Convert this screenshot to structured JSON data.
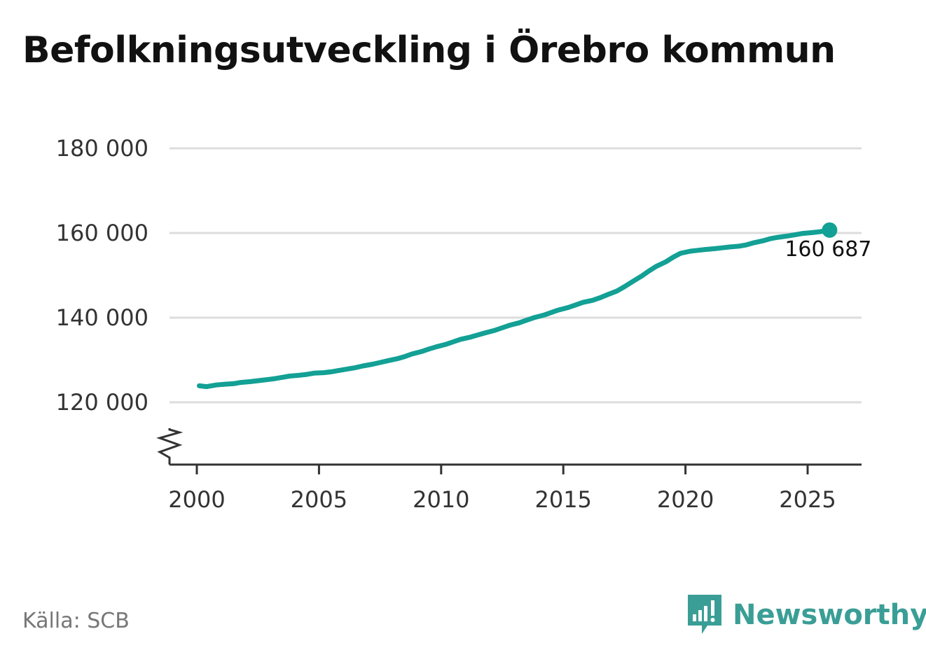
{
  "title": "Befolkningsutveckling i Örebro kommun",
  "source": "Källa: SCB",
  "logo": {
    "text": "Newsworthy",
    "icon": "bar-chart-logo-icon",
    "color": "#3a9e96"
  },
  "colors": {
    "line": "#13a095",
    "grid": "#dddddd",
    "axis": "#333333"
  },
  "chart_data": {
    "type": "line",
    "title": "Befolkningsutveckling i Örebro kommun",
    "xlabel": "",
    "ylabel": "",
    "xlim": [
      1999,
      2027
    ],
    "ylim": [
      105000,
      180000
    ],
    "axis_break": true,
    "grid": true,
    "xticks": [
      2000,
      2005,
      2010,
      2015,
      2020,
      2025
    ],
    "xtick_labels": [
      "2000",
      "2005",
      "2010",
      "2015",
      "2020",
      "2025"
    ],
    "yticks": [
      120000,
      140000,
      160000,
      180000
    ],
    "ytick_labels": [
      "120 000",
      "140 000",
      "160 000",
      "180 000"
    ],
    "series": [
      {
        "x": [
          2000.1,
          2000.4,
          2000.8,
          2001.2,
          2001.5,
          2001.8,
          2002.2,
          2002.5,
          2002.8,
          2003.2,
          2003.5,
          2003.8,
          2004.2,
          2004.5,
          2004.8,
          2005.2,
          2005.5,
          2005.8,
          2006.2,
          2006.5,
          2006.8,
          2007.2,
          2007.5,
          2007.8,
          2008.2,
          2008.5,
          2008.8,
          2009.2,
          2009.5,
          2009.8,
          2010.2,
          2010.5,
          2010.8,
          2011.2,
          2011.5,
          2011.8,
          2012.2,
          2012.5,
          2012.8,
          2013.2,
          2013.5,
          2013.8,
          2014.2,
          2014.5,
          2014.8,
          2015.2,
          2015.5,
          2015.8,
          2016.2,
          2016.5,
          2016.8,
          2017.2,
          2017.5,
          2017.8,
          2018.2,
          2018.5,
          2018.8,
          2019.2,
          2019.5,
          2019.8,
          2020.2,
          2020.5,
          2020.8,
          2021.2,
          2021.5,
          2021.8,
          2022.2,
          2022.5,
          2022.8,
          2023.2,
          2023.5,
          2023.8,
          2024.2,
          2024.5,
          2024.8,
          2025.2,
          2025.5,
          2025.9
        ],
        "y": [
          123900,
          123700,
          124100,
          124300,
          124400,
          124700,
          124900,
          125100,
          125300,
          125600,
          125900,
          126200,
          126400,
          126600,
          126900,
          127000,
          127200,
          127500,
          127900,
          128200,
          128600,
          129000,
          129400,
          129800,
          130300,
          130800,
          131400,
          132000,
          132600,
          133100,
          133700,
          134300,
          134900,
          135400,
          135900,
          136400,
          137000,
          137600,
          138200,
          138800,
          139400,
          140000,
          140600,
          141200,
          141800,
          142400,
          143000,
          143600,
          144100,
          144700,
          145400,
          146300,
          147300,
          148400,
          149800,
          151000,
          152100,
          153200,
          154300,
          155200,
          155700,
          155900,
          156100,
          156300,
          156500,
          156700,
          156900,
          157200,
          157700,
          158200,
          158700,
          159000,
          159300,
          159600,
          159900,
          160100,
          160300,
          160687
        ]
      }
    ],
    "annotations": [
      {
        "x": 2025.9,
        "y": 160687,
        "text": "160 687"
      }
    ]
  }
}
